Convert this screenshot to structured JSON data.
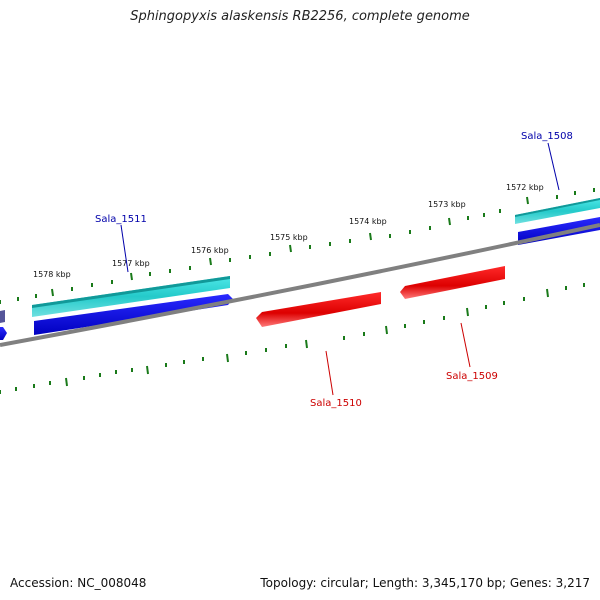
{
  "title": "Sphingopyxis alaskensis RB2256, complete genome",
  "footer": {
    "accession": "Accession: NC_008048",
    "summary": "Topology: circular; Length: 3,345,170 bp; Genes: 3,217"
  },
  "scale_labels": [
    "1572 kbp",
    "1573 kbp",
    "1574 kbp",
    "1575 kbp",
    "1576 kbp",
    "1577 kbp",
    "1578 kbp"
  ],
  "genes": [
    {
      "name": "Sala_1508",
      "strand": "forward",
      "color": "#0000aa"
    },
    {
      "name": "Sala_1509",
      "strand": "reverse",
      "color": "#cc0000"
    },
    {
      "name": "Sala_1510",
      "strand": "reverse",
      "color": "#cc0000"
    },
    {
      "name": "Sala_1511",
      "strand": "forward",
      "color": "#0000aa"
    }
  ],
  "colors": {
    "backbone": "#808080",
    "tick": "#1a7a1a",
    "forward_cds": "#0000ee",
    "forward_gene": "#22cccc",
    "reverse_cds": "#ee0000"
  }
}
